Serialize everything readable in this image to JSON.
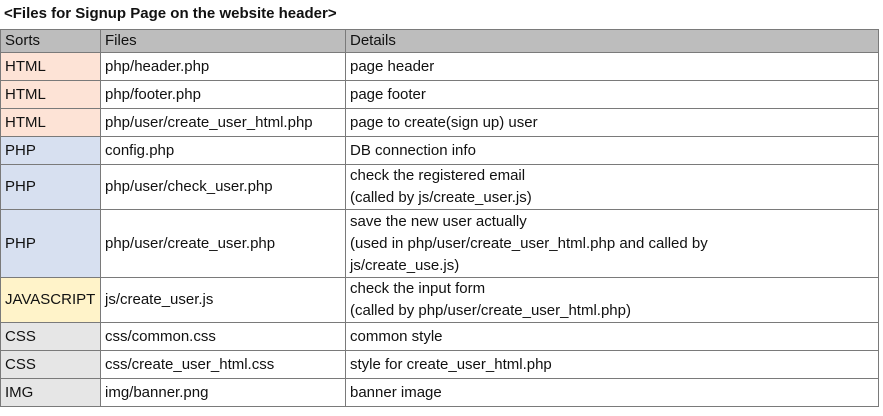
{
  "caption": "<Files for Signup Page on the website header>",
  "headers": [
    "Sorts",
    "Files",
    "Details"
  ],
  "sort_colors": {
    "HTML": "#fde3d6",
    "PHP": "#d7e0f0",
    "JAVASCRIPT": "#fff3c9",
    "CSS": "#e6e6e6",
    "IMG": "#e6e6e6"
  },
  "rows": [
    {
      "sort": "HTML",
      "file": "php/header.php",
      "details": [
        "page header"
      ]
    },
    {
      "sort": "HTML",
      "file": "php/footer.php",
      "details": [
        "page footer"
      ]
    },
    {
      "sort": "HTML",
      "file": "php/user/create_user_html.php",
      "details": [
        "page to create(sign up) user"
      ]
    },
    {
      "sort": "PHP",
      "file": "config.php",
      "details": [
        "DB connection info"
      ]
    },
    {
      "sort": "PHP",
      "file": "php/user/check_user.php",
      "details": [
        "check the registered email",
        "(called by js/create_user.js)"
      ]
    },
    {
      "sort": "PHP",
      "file": "php/user/create_user.php",
      "details": [
        "save the new user actually",
        "(used in php/user/create_user_html.php and called by",
        "js/create_use.js)"
      ]
    },
    {
      "sort": "JAVASCRIPT",
      "file": "js/create_user.js",
      "details": [
        "check the input form",
        "(called by php/user/create_user_html.php)"
      ]
    },
    {
      "sort": "CSS",
      "file": "css/common.css",
      "details": [
        "common style"
      ]
    },
    {
      "sort": "CSS",
      "file": "css/create_user_html.css",
      "details": [
        "style for create_user_html.php"
      ]
    },
    {
      "sort": "IMG",
      "file": "img/banner.png",
      "details": [
        "banner image"
      ]
    }
  ]
}
